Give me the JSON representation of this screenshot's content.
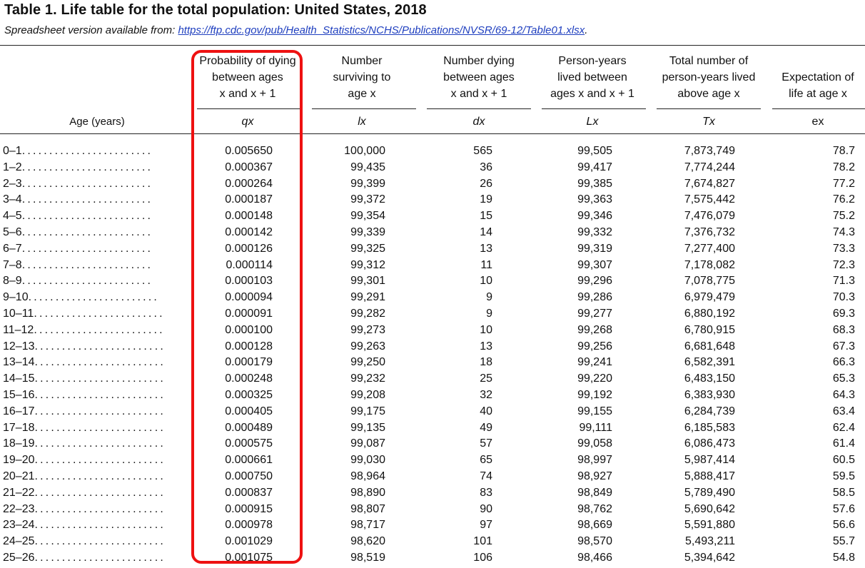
{
  "title": "Table 1. Life table for the total population: United States, 2018",
  "subtitle_prefix": "Spreadsheet version available from: ",
  "subtitle_link": "https://ftp.cdc.gov/pub/Health_Statistics/NCHS/Publications/NVSR/69-12/Table01.xlsx",
  "subtitle_suffix": ".",
  "headers": {
    "age": "Age (years)",
    "qx": {
      "lines": [
        "Probability of dying",
        "between ages",
        "x and x + 1"
      ],
      "symbol": "qx"
    },
    "lx": {
      "lines": [
        "Number",
        "surviving to",
        "age x"
      ],
      "symbol": "lx"
    },
    "dx": {
      "lines": [
        "Number dying",
        "between ages",
        "x and x + 1"
      ],
      "symbol": "dx"
    },
    "Lx": {
      "lines": [
        "Person-years",
        "lived between",
        "ages x and x + 1"
      ],
      "symbol": "Lx"
    },
    "Tx": {
      "lines": [
        "Total number of",
        "person-years lived",
        "above age x"
      ],
      "symbol": "Tx"
    },
    "ex": {
      "lines": [
        "Expectation of",
        "life at age x"
      ],
      "symbol": "ex"
    }
  },
  "dot_leader": "........................",
  "highlight_color": "#ee1111",
  "rows": [
    {
      "age": "0–1",
      "qx": "0.005650",
      "lx": "100,000",
      "dx": "565",
      "Lx": "99,505",
      "Tx": "7,873,749",
      "ex": "78.7"
    },
    {
      "age": "1–2",
      "qx": "0.000367",
      "lx": "99,435",
      "dx": "36",
      "Lx": "99,417",
      "Tx": "7,774,244",
      "ex": "78.2"
    },
    {
      "age": "2–3",
      "qx": "0.000264",
      "lx": "99,399",
      "dx": "26",
      "Lx": "99,385",
      "Tx": "7,674,827",
      "ex": "77.2"
    },
    {
      "age": "3–4",
      "qx": "0.000187",
      "lx": "99,372",
      "dx": "19",
      "Lx": "99,363",
      "Tx": "7,575,442",
      "ex": "76.2"
    },
    {
      "age": "4–5",
      "qx": "0.000148",
      "lx": "99,354",
      "dx": "15",
      "Lx": "99,346",
      "Tx": "7,476,079",
      "ex": "75.2"
    },
    {
      "age": "5–6",
      "qx": "0.000142",
      "lx": "99,339",
      "dx": "14",
      "Lx": "99,332",
      "Tx": "7,376,732",
      "ex": "74.3"
    },
    {
      "age": "6–7",
      "qx": "0.000126",
      "lx": "99,325",
      "dx": "13",
      "Lx": "99,319",
      "Tx": "7,277,400",
      "ex": "73.3"
    },
    {
      "age": "7–8",
      "qx": "0.000114",
      "lx": "99,312",
      "dx": "11",
      "Lx": "99,307",
      "Tx": "7,178,082",
      "ex": "72.3"
    },
    {
      "age": "8–9",
      "qx": "0.000103",
      "lx": "99,301",
      "dx": "10",
      "Lx": "99,296",
      "Tx": "7,078,775",
      "ex": "71.3"
    },
    {
      "age": "9–10",
      "qx": "0.000094",
      "lx": "99,291",
      "dx": "9",
      "Lx": "99,286",
      "Tx": "6,979,479",
      "ex": "70.3"
    },
    {
      "age": "10–11",
      "qx": "0.000091",
      "lx": "99,282",
      "dx": "9",
      "Lx": "99,277",
      "Tx": "6,880,192",
      "ex": "69.3"
    },
    {
      "age": "11–12",
      "qx": "0.000100",
      "lx": "99,273",
      "dx": "10",
      "Lx": "99,268",
      "Tx": "6,780,915",
      "ex": "68.3"
    },
    {
      "age": "12–13",
      "qx": "0.000128",
      "lx": "99,263",
      "dx": "13",
      "Lx": "99,256",
      "Tx": "6,681,648",
      "ex": "67.3"
    },
    {
      "age": "13–14",
      "qx": "0.000179",
      "lx": "99,250",
      "dx": "18",
      "Lx": "99,241",
      "Tx": "6,582,391",
      "ex": "66.3"
    },
    {
      "age": "14–15",
      "qx": "0.000248",
      "lx": "99,232",
      "dx": "25",
      "Lx": "99,220",
      "Tx": "6,483,150",
      "ex": "65.3"
    },
    {
      "age": "15–16",
      "qx": "0.000325",
      "lx": "99,208",
      "dx": "32",
      "Lx": "99,192",
      "Tx": "6,383,930",
      "ex": "64.3"
    },
    {
      "age": "16–17",
      "qx": "0.000405",
      "lx": "99,175",
      "dx": "40",
      "Lx": "99,155",
      "Tx": "6,284,739",
      "ex": "63.4"
    },
    {
      "age": "17–18",
      "qx": "0.000489",
      "lx": "99,135",
      "dx": "49",
      "Lx": "99,111",
      "Tx": "6,185,583",
      "ex": "62.4"
    },
    {
      "age": "18–19",
      "qx": "0.000575",
      "lx": "99,087",
      "dx": "57",
      "Lx": "99,058",
      "Tx": "6,086,473",
      "ex": "61.4"
    },
    {
      "age": "19–20",
      "qx": "0.000661",
      "lx": "99,030",
      "dx": "65",
      "Lx": "98,997",
      "Tx": "5,987,414",
      "ex": "60.5"
    },
    {
      "age": "20–21",
      "qx": "0.000750",
      "lx": "98,964",
      "dx": "74",
      "Lx": "98,927",
      "Tx": "5,888,417",
      "ex": "59.5"
    },
    {
      "age": "21–22",
      "qx": "0.000837",
      "lx": "98,890",
      "dx": "83",
      "Lx": "98,849",
      "Tx": "5,789,490",
      "ex": "58.5"
    },
    {
      "age": "22–23",
      "qx": "0.000915",
      "lx": "98,807",
      "dx": "90",
      "Lx": "98,762",
      "Tx": "5,690,642",
      "ex": "57.6"
    },
    {
      "age": "23–24",
      "qx": "0.000978",
      "lx": "98,717",
      "dx": "97",
      "Lx": "98,669",
      "Tx": "5,591,880",
      "ex": "56.6"
    },
    {
      "age": "24–25",
      "qx": "0.001029",
      "lx": "98,620",
      "dx": "101",
      "Lx": "98,570",
      "Tx": "5,493,211",
      "ex": "55.7"
    },
    {
      "age": "25–26",
      "qx": "0.001075",
      "lx": "98,519",
      "dx": "106",
      "Lx": "98,466",
      "Tx": "5,394,642",
      "ex": "54.8"
    }
  ]
}
